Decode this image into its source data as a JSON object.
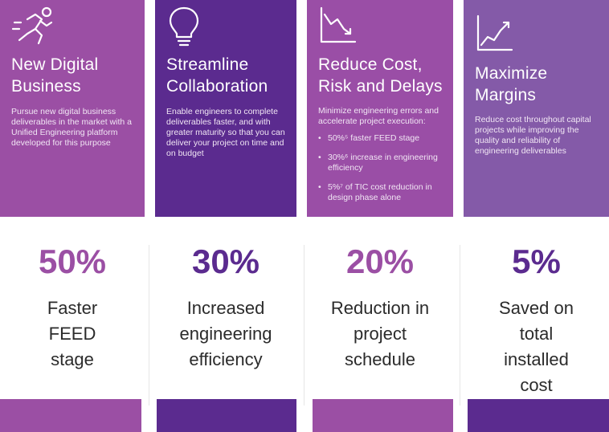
{
  "cards": [
    {
      "icon": "running-person-icon",
      "title_line1": "New Digital",
      "title_line2": "Business",
      "text": "Pursue new digital business deliverables in the market with a Unified Engineering platform developed for this purpose"
    },
    {
      "icon": "lightbulb-icon",
      "title_line1": "Streamline",
      "title_line2": "Collaboration",
      "text": "Enable engineers to complete deliverables faster, and with greater maturity so that you can deliver your project on time and on budget"
    },
    {
      "icon": "downward-trend-chart-icon",
      "title_line1": "Reduce Cost,",
      "title_line2": "Risk and Delays",
      "text": "Minimize engineering errors and accelerate project execution:",
      "bullets": [
        "50%⁵ faster FEED stage",
        "30%⁶ increase in engineering efficiency",
        "5%⁷ of TIC cost reduction in design phase alone"
      ]
    },
    {
      "icon": "upward-trend-chart-icon",
      "title_line1": "Maximize",
      "title_line2": "Margins",
      "text": "Reduce cost throughout capital projects while improving the quality and reliability of engineering deliverables"
    }
  ],
  "stats": [
    {
      "value": "50%",
      "lines": [
        "Faster",
        "FEED",
        "stage"
      ]
    },
    {
      "value": "30%",
      "lines": [
        "Increased",
        "engineering",
        "efficiency"
      ]
    },
    {
      "value": "20%",
      "lines": [
        "Reduction in",
        "project",
        "schedule"
      ]
    },
    {
      "value": "5%",
      "lines": [
        "Saved on",
        "total",
        "installed",
        "cost"
      ]
    }
  ],
  "colors": {
    "magenta": "#9b4fa4",
    "purple": "#5b2b8f",
    "lavender": "#845aa8"
  }
}
